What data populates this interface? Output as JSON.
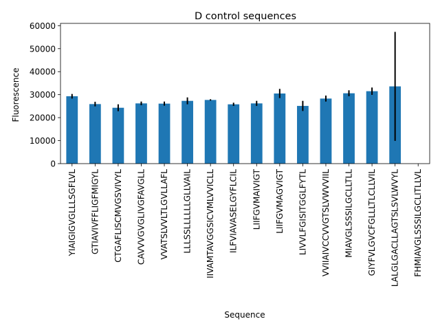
{
  "chart_data": {
    "type": "bar",
    "title": "D control sequences",
    "xlabel": "Sequence",
    "ylabel": "Fluorescence",
    "ylim": [
      0,
      61000
    ],
    "yticks": [
      0,
      10000,
      20000,
      30000,
      40000,
      50000,
      60000
    ],
    "grid": false,
    "legend": "none",
    "bar_color": "#1f77b4",
    "error_color": "#000000",
    "categories": [
      "YIAIGIGVGLLLSGFLVL",
      "GTIAVIVFFLIGFMIGYL",
      "CTGAFLISCMVGSVIVYL",
      "CAVVVGVGLIVGFAVGLL",
      "VVATSLVVLTLGVLLAFL",
      "LLLSSLLLLLLGLLVAIL",
      "IIVAMTAVGGSICVMLVVICLL",
      "ILFVIAVASELGYFLCIL",
      "LIIFGVMAIVIGT",
      "LIIFGVMAGVIGT",
      "LIVVLFGISITGGLFYTL",
      "VVIIAIVCCVVGTSLVWVVIIL",
      "MIAVGLSSSILGCLLTLL",
      "GIYFVLGVCFGLLLTLCLLVIL",
      "LALGLGACLLAGTSLSVLWVYL",
      "FHMIAVGLSSSILGCLITLLVL"
    ],
    "values": [
      29300,
      25900,
      24300,
      26200,
      26100,
      27300,
      27700,
      25800,
      26200,
      30500,
      25100,
      28300,
      30600,
      31500,
      33600,
      null
    ],
    "errors": [
      1000,
      1000,
      1500,
      800,
      900,
      1500,
      300,
      700,
      1100,
      2000,
      2200,
      1300,
      1300,
      1600,
      23700,
      null
    ]
  }
}
